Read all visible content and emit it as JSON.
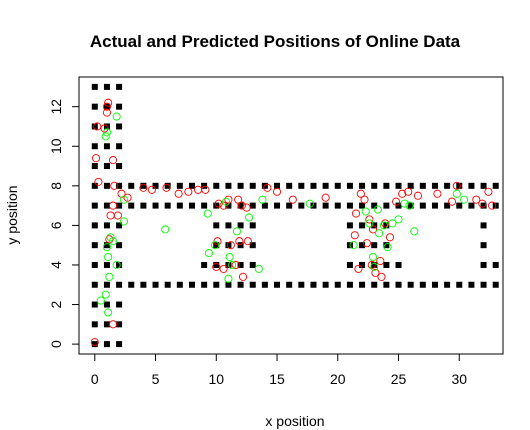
{
  "chart_data": {
    "type": "scatter",
    "title": "Actual and Predicted Positions of Online Data",
    "xlabel": "x position",
    "ylabel": "y position",
    "xlim": [
      -1.3,
      33.6
    ],
    "ylim": [
      -0.5,
      13.5
    ],
    "x_ticks": [
      0,
      5,
      10,
      15,
      20,
      25,
      30
    ],
    "y_ticks": [
      0,
      2,
      4,
      6,
      8,
      10,
      12
    ],
    "grid": false,
    "legend": "none",
    "colors": {
      "training": "#000000",
      "actual": "#ff0000",
      "predicted": "#00ff00"
    },
    "series": [
      {
        "marker": "filled-square",
        "color": "#000000",
        "points": [
          [
            0,
            0
          ],
          [
            0,
            1
          ],
          [
            0,
            2
          ],
          [
            0,
            3
          ],
          [
            0,
            4
          ],
          [
            0,
            5
          ],
          [
            0,
            6
          ],
          [
            0,
            7
          ],
          [
            0,
            8
          ],
          [
            0,
            9
          ],
          [
            0,
            10
          ],
          [
            0,
            11
          ],
          [
            0,
            12
          ],
          [
            0,
            13
          ],
          [
            1,
            0
          ],
          [
            1,
            1
          ],
          [
            1,
            2
          ],
          [
            1,
            3
          ],
          [
            1,
            4
          ],
          [
            1,
            5
          ],
          [
            1,
            6
          ],
          [
            1,
            7
          ],
          [
            1,
            8
          ],
          [
            1,
            9
          ],
          [
            1,
            10
          ],
          [
            1,
            11
          ],
          [
            1,
            12
          ],
          [
            1,
            13
          ],
          [
            2,
            0
          ],
          [
            2,
            1
          ],
          [
            2,
            2
          ],
          [
            2,
            3
          ],
          [
            2,
            4
          ],
          [
            2,
            5
          ],
          [
            2,
            6
          ],
          [
            2,
            7
          ],
          [
            2,
            8
          ],
          [
            2,
            9
          ],
          [
            2,
            10
          ],
          [
            2,
            11
          ],
          [
            2,
            12
          ],
          [
            2,
            13
          ],
          [
            3,
            3
          ],
          [
            3,
            7
          ],
          [
            3,
            8
          ],
          [
            4,
            3
          ],
          [
            4,
            7
          ],
          [
            4,
            8
          ],
          [
            5,
            3
          ],
          [
            5,
            7
          ],
          [
            5,
            8
          ],
          [
            6,
            3
          ],
          [
            6,
            7
          ],
          [
            6,
            8
          ],
          [
            7,
            3
          ],
          [
            7,
            7
          ],
          [
            7,
            8
          ],
          [
            8,
            3
          ],
          [
            8,
            7
          ],
          [
            8,
            8
          ],
          [
            9,
            3
          ],
          [
            9,
            4
          ],
          [
            9,
            7
          ],
          [
            9,
            8
          ],
          [
            10,
            3
          ],
          [
            10,
            4
          ],
          [
            10,
            5
          ],
          [
            10,
            6
          ],
          [
            10,
            7
          ],
          [
            10,
            8
          ],
          [
            11,
            3
          ],
          [
            11,
            4
          ],
          [
            11,
            5
          ],
          [
            11,
            6
          ],
          [
            11,
            7
          ],
          [
            11,
            8
          ],
          [
            12,
            3
          ],
          [
            12,
            4
          ],
          [
            12,
            5
          ],
          [
            12,
            6
          ],
          [
            12,
            7
          ],
          [
            12,
            8
          ],
          [
            13,
            3
          ],
          [
            13,
            4
          ],
          [
            13,
            5
          ],
          [
            13,
            6
          ],
          [
            13,
            7
          ],
          [
            13,
            8
          ],
          [
            14,
            3
          ],
          [
            14,
            7
          ],
          [
            14,
            8
          ],
          [
            15,
            3
          ],
          [
            15,
            7
          ],
          [
            15,
            8
          ],
          [
            16,
            3
          ],
          [
            16,
            7
          ],
          [
            16,
            8
          ],
          [
            17,
            3
          ],
          [
            17,
            7
          ],
          [
            17,
            8
          ],
          [
            18,
            3
          ],
          [
            18,
            7
          ],
          [
            18,
            8
          ],
          [
            19,
            3
          ],
          [
            19,
            7
          ],
          [
            19,
            8
          ],
          [
            20,
            3
          ],
          [
            20,
            7
          ],
          [
            20,
            8
          ],
          [
            21,
            3
          ],
          [
            21,
            4
          ],
          [
            21,
            5
          ],
          [
            21,
            6
          ],
          [
            21,
            7
          ],
          [
            21,
            8
          ],
          [
            22,
            3
          ],
          [
            22,
            4
          ],
          [
            22,
            5
          ],
          [
            22,
            6
          ],
          [
            22,
            7
          ],
          [
            22,
            8
          ],
          [
            23,
            3
          ],
          [
            23,
            4
          ],
          [
            23,
            5
          ],
          [
            23,
            6
          ],
          [
            23,
            7
          ],
          [
            23,
            8
          ],
          [
            24,
            3
          ],
          [
            24,
            4
          ],
          [
            24,
            5
          ],
          [
            24,
            6
          ],
          [
            24,
            7
          ],
          [
            24,
            8
          ],
          [
            25,
            3
          ],
          [
            25,
            4
          ],
          [
            25,
            7
          ],
          [
            25,
            8
          ],
          [
            26,
            3
          ],
          [
            26,
            7
          ],
          [
            26,
            8
          ],
          [
            27,
            3
          ],
          [
            27,
            7
          ],
          [
            27,
            8
          ],
          [
            28,
            3
          ],
          [
            28,
            7
          ],
          [
            28,
            8
          ],
          [
            29,
            3
          ],
          [
            29,
            7
          ],
          [
            29,
            8
          ],
          [
            30,
            3
          ],
          [
            30,
            7
          ],
          [
            30,
            8
          ],
          [
            31,
            3
          ],
          [
            31,
            7
          ],
          [
            31,
            8
          ],
          [
            32,
            3
          ],
          [
            32,
            4
          ],
          [
            32,
            5
          ],
          [
            32,
            6
          ],
          [
            32,
            7
          ],
          [
            32,
            8
          ],
          [
            33,
            3
          ],
          [
            33,
            4
          ],
          [
            33,
            7
          ],
          [
            33,
            8
          ]
        ]
      },
      {
        "marker": "open-circle",
        "color": "#ff0000",
        "points": [
          [
            0.0,
            0.1
          ],
          [
            0.1,
            9.4
          ],
          [
            0.2,
            11.0
          ],
          [
            0.3,
            8.2
          ],
          [
            0.8,
            10.9
          ],
          [
            1.0,
            11.7
          ],
          [
            1.1,
            12.2
          ],
          [
            1.0,
            12.0
          ],
          [
            1.5,
            9.3
          ],
          [
            1.6,
            8.0
          ],
          [
            1.5,
            7.0
          ],
          [
            1.3,
            6.5
          ],
          [
            1.9,
            6.5
          ],
          [
            1.2,
            5.3
          ],
          [
            1.5,
            1.0
          ],
          [
            2.2,
            7.6
          ],
          [
            2.7,
            7.4
          ],
          [
            4.0,
            7.9
          ],
          [
            4.7,
            7.8
          ],
          [
            5.9,
            7.9
          ],
          [
            6.9,
            7.6
          ],
          [
            7.7,
            7.7
          ],
          [
            8.5,
            7.8
          ],
          [
            9.1,
            7.8
          ],
          [
            10.2,
            7.1
          ],
          [
            10.6,
            7.0
          ],
          [
            11.0,
            7.3
          ],
          [
            11.8,
            7.3
          ],
          [
            12.1,
            7.0
          ],
          [
            12.5,
            6.9
          ],
          [
            10.1,
            5.2
          ],
          [
            11.2,
            5.0
          ],
          [
            11.9,
            5.2
          ],
          [
            12.6,
            5.2
          ],
          [
            10.0,
            3.9
          ],
          [
            10.6,
            3.8
          ],
          [
            11.6,
            4.0
          ],
          [
            12.2,
            3.4
          ],
          [
            14.2,
            7.9
          ],
          [
            15.0,
            7.7
          ],
          [
            16.3,
            7.3
          ],
          [
            19.0,
            7.4
          ],
          [
            21.4,
            5.5
          ],
          [
            21.5,
            6.6
          ],
          [
            21.7,
            3.8
          ],
          [
            21.9,
            7.6
          ],
          [
            22.2,
            7.3
          ],
          [
            22.4,
            5.1
          ],
          [
            22.6,
            6.3
          ],
          [
            22.9,
            5.8
          ],
          [
            22.8,
            4.0
          ],
          [
            23.1,
            3.6
          ],
          [
            23.5,
            4.2
          ],
          [
            23.6,
            3.4
          ],
          [
            23.9,
            6.1
          ],
          [
            24.3,
            5.4
          ],
          [
            24.8,
            7.2
          ],
          [
            25.3,
            7.6
          ],
          [
            25.8,
            7.7
          ],
          [
            26.6,
            7.5
          ],
          [
            28.2,
            7.6
          ],
          [
            29.8,
            8.0
          ],
          [
            29.4,
            7.2
          ],
          [
            31.4,
            7.3
          ],
          [
            31.9,
            7.1
          ],
          [
            32.4,
            7.7
          ],
          [
            32.7,
            7.0
          ]
        ]
      },
      {
        "marker": "open-circle",
        "color": "#00ff00",
        "points": [
          [
            0.5,
            2.2
          ],
          [
            0.9,
            2.5
          ],
          [
            1.1,
            1.6
          ],
          [
            1.0,
            10.7
          ],
          [
            0.9,
            10.5
          ],
          [
            1.0,
            4.9
          ],
          [
            1.1,
            4.4
          ],
          [
            1.3,
            5.4
          ],
          [
            1.5,
            5.2
          ],
          [
            1.8,
            4.0
          ],
          [
            1.2,
            3.4
          ],
          [
            1.8,
            11.5
          ],
          [
            2.4,
            7.3
          ],
          [
            2.4,
            6.2
          ],
          [
            5.8,
            5.8
          ],
          [
            9.3,
            6.6
          ],
          [
            9.4,
            4.6
          ],
          [
            9.9,
            5.0
          ],
          [
            10.8,
            7.2
          ],
          [
            11.1,
            4.4
          ],
          [
            11.3,
            4.0
          ],
          [
            11.0,
            3.3
          ],
          [
            11.7,
            5.7
          ],
          [
            12.7,
            6.4
          ],
          [
            13.5,
            3.8
          ],
          [
            13.8,
            7.3
          ],
          [
            17.7,
            7.1
          ],
          [
            21.3,
            5.0
          ],
          [
            22.3,
            6.7
          ],
          [
            22.6,
            6.1
          ],
          [
            22.9,
            4.4
          ],
          [
            23.0,
            3.9
          ],
          [
            23.3,
            6.8
          ],
          [
            23.4,
            5.6
          ],
          [
            23.8,
            6.0
          ],
          [
            24.1,
            4.9
          ],
          [
            24.5,
            6.1
          ],
          [
            25.0,
            6.3
          ],
          [
            25.5,
            7.1
          ],
          [
            25.9,
            7.0
          ],
          [
            26.3,
            5.7
          ],
          [
            29.8,
            7.6
          ],
          [
            30.4,
            7.3
          ]
        ]
      }
    ]
  }
}
